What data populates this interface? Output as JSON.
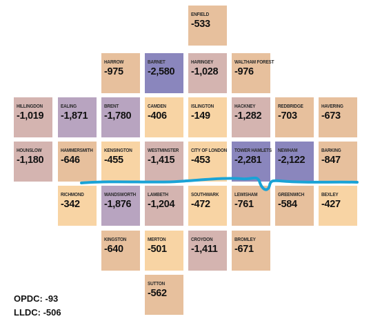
{
  "boroughs": [
    {
      "id": "enfield",
      "name": "ENFIELD",
      "value": "-533",
      "shade": "tan"
    },
    {
      "id": "harrow",
      "name": "HARROW",
      "value": "-975",
      "shade": "tan"
    },
    {
      "id": "barnet",
      "name": "BARNET",
      "value": "-2,580",
      "shade": "purple"
    },
    {
      "id": "haringey",
      "name": "HARINGEY",
      "value": "-1,028",
      "shade": "mauve"
    },
    {
      "id": "waltham-forest",
      "name": "WALTHAM FOREST",
      "value": "-976",
      "shade": "tan"
    },
    {
      "id": "hillingdon",
      "name": "HILLINGDON",
      "value": "-1,019",
      "shade": "mauve"
    },
    {
      "id": "ealing",
      "name": "EALING",
      "value": "-1,871",
      "shade": "lilac"
    },
    {
      "id": "brent",
      "name": "BRENT",
      "value": "-1,780",
      "shade": "lilac"
    },
    {
      "id": "camden",
      "name": "CAMDEN",
      "value": "-406",
      "shade": "light"
    },
    {
      "id": "islington",
      "name": "ISLINGTON",
      "value": "-149",
      "shade": "light"
    },
    {
      "id": "hackney",
      "name": "HACKNEY",
      "value": "-1,282",
      "shade": "mauve"
    },
    {
      "id": "redbridge",
      "name": "REDBRIDGE",
      "value": "-703",
      "shade": "tan"
    },
    {
      "id": "havering",
      "name": "HAVERING",
      "value": "-673",
      "shade": "tan"
    },
    {
      "id": "hounslow",
      "name": "HOUNSLOW",
      "value": "-1,180",
      "shade": "mauve"
    },
    {
      "id": "hammersmith",
      "name": "HAMMERSMITH",
      "value": "-646",
      "shade": "tan"
    },
    {
      "id": "kensington",
      "name": "KENSINGTON",
      "value": "-455",
      "shade": "light"
    },
    {
      "id": "westminster",
      "name": "WESTMINSTER",
      "value": "-1,415",
      "shade": "mauve"
    },
    {
      "id": "city-of-london",
      "name": "CITY OF LONDON",
      "value": "-453",
      "shade": "light"
    },
    {
      "id": "tower-hamlets",
      "name": "TOWER HAMLETS",
      "value": "-2,281",
      "shade": "purple"
    },
    {
      "id": "newham",
      "name": "NEWHAM",
      "value": "-2,122",
      "shade": "purple"
    },
    {
      "id": "barking",
      "name": "BARKING",
      "value": "-847",
      "shade": "tan"
    },
    {
      "id": "richmond",
      "name": "RICHMOND",
      "value": "-342",
      "shade": "light"
    },
    {
      "id": "wandsworth",
      "name": "WANDSWORTH",
      "value": "-1,876",
      "shade": "lilac"
    },
    {
      "id": "lambeth",
      "name": "LAMBETH",
      "value": "-1,204",
      "shade": "mauve"
    },
    {
      "id": "southwark",
      "name": "SOUTHWARK",
      "value": "-472",
      "shade": "light"
    },
    {
      "id": "lewisham",
      "name": "LEWISHAM",
      "value": "-761",
      "shade": "tan"
    },
    {
      "id": "greenwich",
      "name": "GREENWICH",
      "value": "-584",
      "shade": "tan"
    },
    {
      "id": "bexley",
      "name": "BEXLEY",
      "value": "-427",
      "shade": "light"
    },
    {
      "id": "kingston",
      "name": "KINGSTON",
      "value": "-640",
      "shade": "tan"
    },
    {
      "id": "merton",
      "name": "MERTON",
      "value": "-501",
      "shade": "light"
    },
    {
      "id": "croydon",
      "name": "CROYDON",
      "value": "-1,411",
      "shade": "mauve"
    },
    {
      "id": "bromley",
      "name": "BROMLEY",
      "value": "-671",
      "shade": "tan"
    },
    {
      "id": "sutton",
      "name": "SUTTON",
      "value": "-562",
      "shade": "tan"
    }
  ],
  "legend": {
    "opdc": "OPDC: -93",
    "lldc": "LLDC: -506"
  },
  "colors": {
    "river": "#1aa3d6",
    "light": "#f8d4a4",
    "tan": "#e7c09d",
    "mauve": "#d4b4b0",
    "lilac": "#b8a4c0",
    "purple": "#8a86bd"
  }
}
